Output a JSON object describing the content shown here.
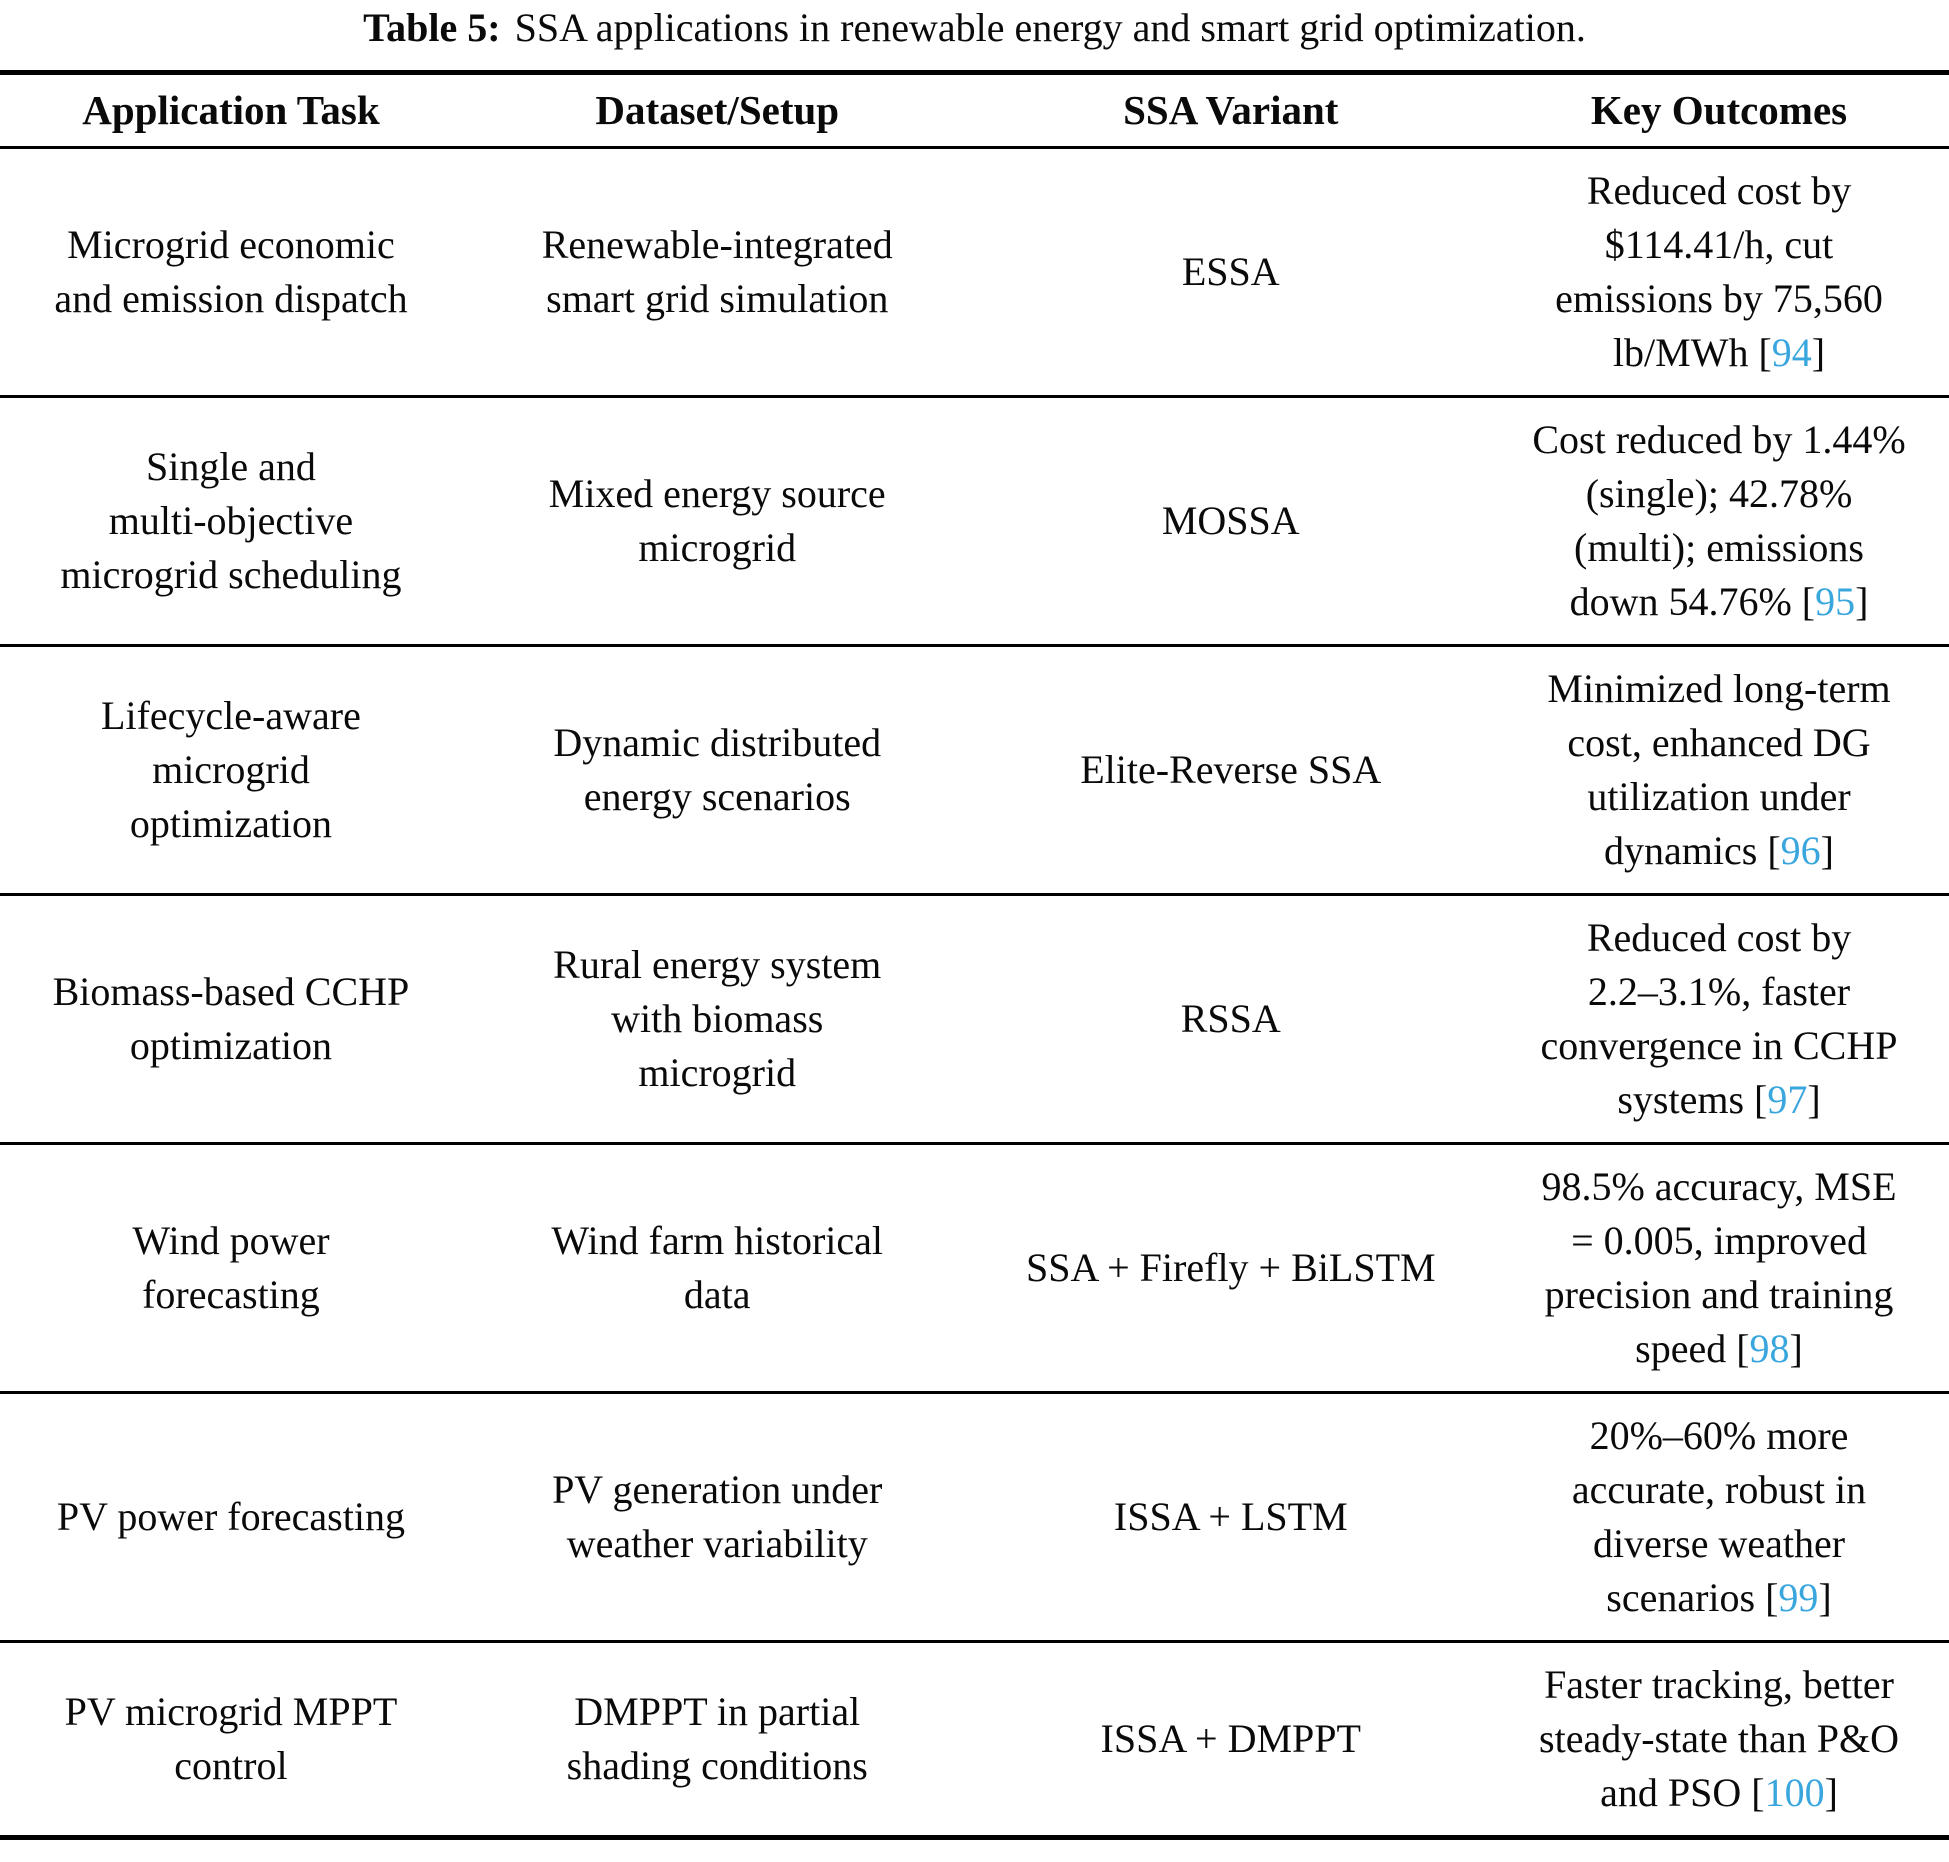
{
  "title": {
    "label": "Table 5:",
    "text": "SSA applications in renewable energy and smart grid optimization."
  },
  "colors": {
    "citation_blue": "#3AA6DE",
    "text": "#000000",
    "rule": "#000000"
  },
  "table": {
    "columns": [
      "Application Task",
      "Dataset/Setup",
      "SSA Variant",
      "Key Outcomes"
    ],
    "citation_open": "[",
    "citation_close": "]",
    "rows": [
      {
        "task": "Microgrid economic\nand emission dispatch",
        "dataset": "Renewable-integrated\nsmart grid simulation",
        "variant": "ESSA",
        "outcome": "Reduced cost by\n$114.41/h, cut\nemissions by 75,560\nlb/MWh",
        "ref": "94"
      },
      {
        "task": "Single and\nmulti-objective\nmicrogrid scheduling",
        "dataset": "Mixed energy source\nmicrogrid",
        "variant": "MOSSA",
        "outcome": "Cost reduced by 1.44%\n(single); 42.78%\n(multi); emissions\ndown 54.76%",
        "ref": "95"
      },
      {
        "task": "Lifecycle-aware\nmicrogrid\noptimization",
        "dataset": "Dynamic distributed\nenergy scenarios",
        "variant": "Elite-Reverse SSA",
        "outcome": "Minimized long-term\ncost, enhanced DG\nutilization under\ndynamics",
        "ref": "96"
      },
      {
        "task": "Biomass-based CCHP\noptimization",
        "dataset": "Rural energy system\nwith biomass\nmicrogrid",
        "variant": "RSSA",
        "outcome": "Reduced cost by\n2.2–3.1%, faster\nconvergence in CCHP\nsystems",
        "ref": "97"
      },
      {
        "task": "Wind power\nforecasting",
        "dataset": "Wind farm historical\ndata",
        "variant": "SSA + Firefly + BiLSTM",
        "outcome": "98.5% accuracy, MSE\n= 0.005, improved\nprecision and training\nspeed",
        "ref": "98"
      },
      {
        "task": "PV power forecasting",
        "dataset": "PV generation under\nweather variability",
        "variant": "ISSA + LSTM",
        "outcome": "20%–60% more\naccurate, robust in\ndiverse weather\nscenarios",
        "ref": "99"
      },
      {
        "task": "PV microgrid MPPT\ncontrol",
        "dataset": "DMPPT in partial\nshading conditions",
        "variant": "ISSA + DMPPT",
        "outcome": "Faster tracking, better\nsteady-state than P&O\nand PSO",
        "ref": "100"
      }
    ]
  }
}
